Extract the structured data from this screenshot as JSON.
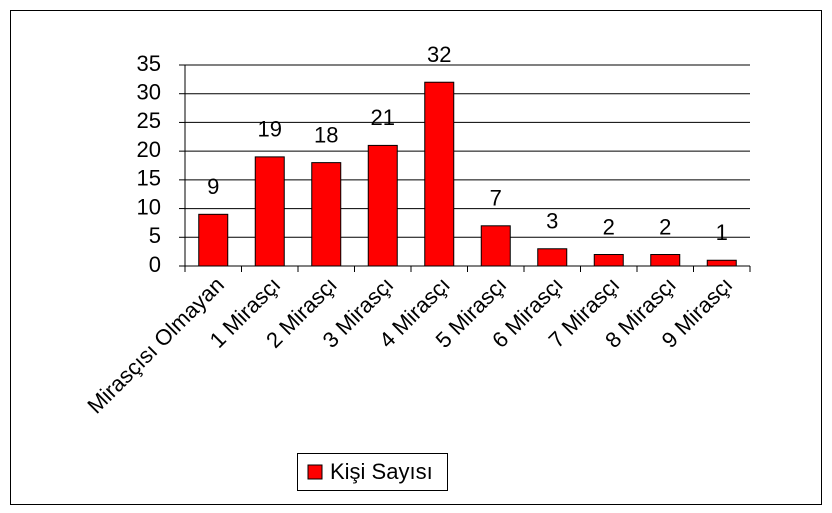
{
  "chart_data": {
    "type": "bar",
    "categories": [
      "Mirasçısı Olmayan",
      "1 Mirasçı",
      "2 Mirasçı",
      "3 Mirasçı",
      "4 Mirasçı",
      "5 Mirasçı",
      "6 Mirasçı",
      "7 Mirasçı",
      "8 Mirasçı",
      "9 Mirasçı"
    ],
    "series": [
      {
        "name": "Kişi Sayısı",
        "color": "#ff0000",
        "values": [
          9,
          19,
          18,
          21,
          32,
          7,
          3,
          2,
          2,
          1
        ]
      }
    ],
    "ylim": [
      0,
      35
    ],
    "yticks": [
      0,
      5,
      10,
      15,
      20,
      25,
      30,
      35
    ],
    "grid": true,
    "legend": "bottom"
  }
}
